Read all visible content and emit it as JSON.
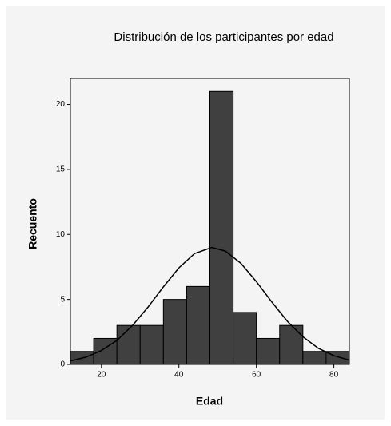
{
  "chart_data": {
    "type": "histogram",
    "title": "Distribución de los participantes por edad",
    "x_label": "Edad",
    "y_label": "Recuento",
    "bins": [
      12,
      18,
      24,
      30,
      36,
      42,
      48,
      54,
      60,
      66,
      72,
      78,
      84
    ],
    "values": [
      1,
      2,
      3,
      3,
      5,
      6,
      21,
      4,
      2,
      3,
      1,
      1
    ],
    "color": "#404040",
    "curve": {
      "x": [
        12,
        16,
        20,
        24,
        28,
        32,
        36,
        40,
        44,
        48.5,
        52,
        56,
        60,
        64,
        68,
        72,
        76,
        80,
        84
      ],
      "y": [
        0.27,
        0.56,
        1.07,
        1.85,
        2.99,
        4.4,
        5.97,
        7.43,
        8.52,
        9,
        8.72,
        7.78,
        6.37,
        4.8,
        3.32,
        2.13,
        1.24,
        0.67,
        0.33
      ]
    },
    "xlim": [
      12,
      84
    ],
    "ylim": [
      0,
      22
    ],
    "xticks": [
      20,
      40,
      60,
      80
    ],
    "yticks": [
      0,
      5,
      10,
      15,
      20
    ]
  }
}
